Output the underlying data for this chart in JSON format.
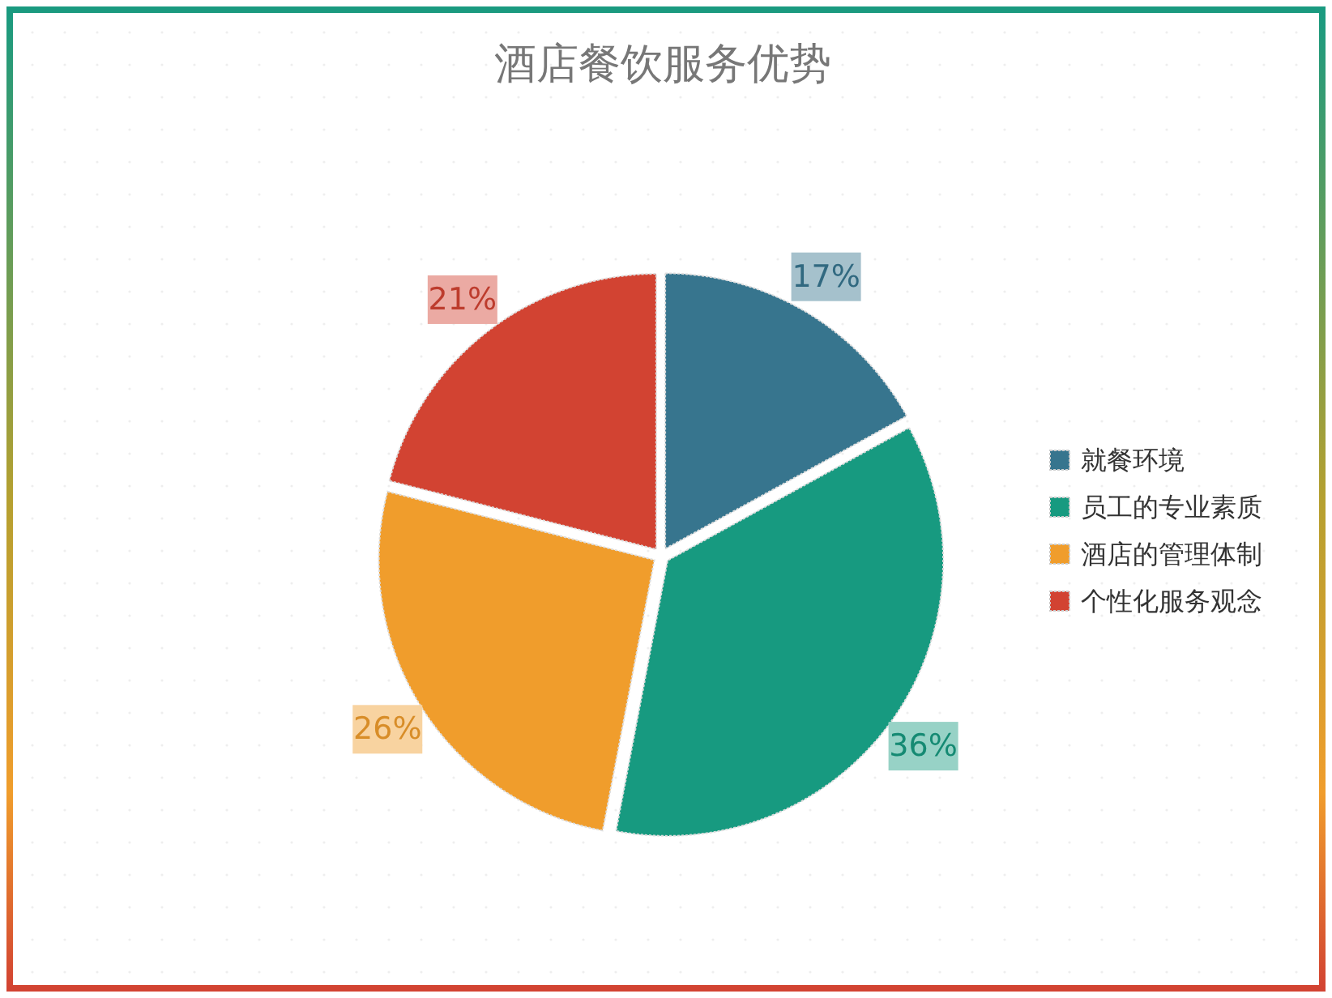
{
  "chart_data": {
    "type": "pie",
    "title": "酒店餐饮服务优势",
    "categories": [
      "就餐环境",
      "员工的专业素质",
      "酒店的管理体制",
      "个性化服务观念"
    ],
    "values": [
      17,
      36,
      26,
      21
    ],
    "colors": [
      "#37758e",
      "#179a80",
      "#f09d2c",
      "#d24332"
    ],
    "value_labels": [
      "17%",
      "36%",
      "26%",
      "21%"
    ],
    "legend": "right"
  }
}
